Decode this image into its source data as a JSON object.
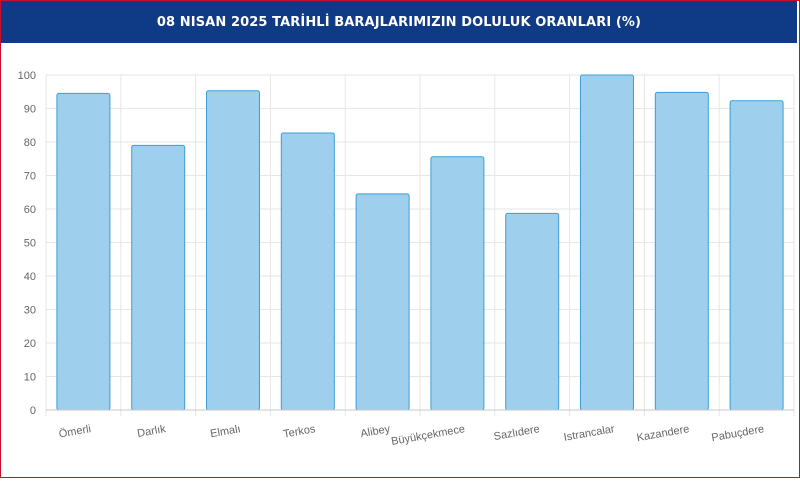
{
  "header": {
    "title": "08 NISAN 2025 TARİHLİ BARAJLARIMIZIN DOLULUK ORANLARI (%)",
    "background": "#0f3b86",
    "border_color": "#c8102e"
  },
  "chart_data": {
    "type": "bar",
    "title": "08 NISAN 2025 TARİHLİ BARAJLARIMIZIN DOLULUK ORANLARI (%)",
    "xlabel": "",
    "ylabel": "",
    "categories": [
      "Ömerli",
      "Darlık",
      "Elmalı",
      "Terkos",
      "Alibey",
      "Büyükçekmece",
      "Sazlıdere",
      "Istrancalar",
      "Kazandere",
      "Pabuçdere"
    ],
    "values": [
      94.5,
      79,
      95.3,
      82.7,
      64.5,
      75.6,
      58.7,
      100,
      94.8,
      92.3
    ],
    "ylim": [
      0,
      100
    ],
    "yticks": [
      0,
      10,
      20,
      30,
      40,
      50,
      60,
      70,
      80,
      90,
      100
    ],
    "grid": true,
    "legend": "none",
    "bar_fill": "#9ecfed",
    "bar_stroke": "#3a9fd6"
  }
}
